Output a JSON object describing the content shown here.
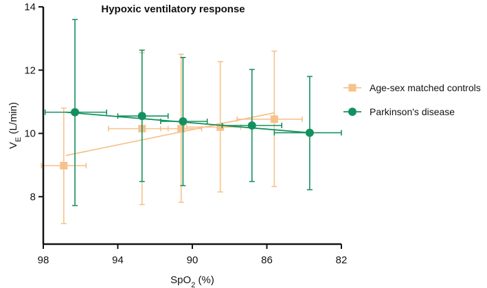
{
  "chart_data": {
    "type": "scatter",
    "title": "Hypoxic ventilatory response",
    "xlabel": {
      "main": "SpO",
      "sub": "2",
      "unit": " (%)"
    },
    "ylabel": {
      "main": "V",
      "sub": "E",
      "unit": " (L/min)"
    },
    "xlim": [
      98,
      82
    ],
    "ylim": [
      6.5,
      14
    ],
    "xticks": [
      98,
      94,
      90,
      86,
      82
    ],
    "yticks": [
      8,
      10,
      12,
      14
    ],
    "legend_position": "right",
    "series": [
      {
        "name": "Age-sex matched controls",
        "color": "#f6c28c",
        "marker": "square",
        "points": [
          {
            "x": 96.9,
            "y": 8.98,
            "x_err": [
              95.7,
              98.1
            ],
            "y_err": [
              7.15,
              10.8
            ]
          },
          {
            "x": 92.7,
            "y": 10.15,
            "x_err": [
              91.3,
              94.5
            ],
            "y_err": [
              7.75,
              12.55
            ]
          },
          {
            "x": 90.6,
            "y": 10.15,
            "x_err": [
              89.5,
              91.7
            ],
            "y_err": [
              7.82,
              12.5
            ]
          },
          {
            "x": 88.5,
            "y": 10.2,
            "x_err": [
              87.4,
              90.3
            ],
            "y_err": [
              8.15,
              12.27
            ]
          },
          {
            "x": 85.6,
            "y": 10.45,
            "x_err": [
              84.1,
              87.6
            ],
            "y_err": [
              8.32,
              12.6
            ]
          }
        ],
        "trend": {
          "x1": 96.8,
          "y1": 9.3,
          "x2": 85.6,
          "y2": 10.65
        }
      },
      {
        "name": "Parkinson's disease",
        "color": "#13905e",
        "marker": "circle",
        "points": [
          {
            "x": 96.3,
            "y": 10.67,
            "x_err": [
              97.9,
              94.6
            ],
            "y_err": [
              7.72,
              13.6
            ]
          },
          {
            "x": 92.7,
            "y": 10.55,
            "x_err": [
              94.0,
              91.3
            ],
            "y_err": [
              8.48,
              12.63
            ]
          },
          {
            "x": 90.5,
            "y": 10.38,
            "x_err": [
              91.7,
              89.2
            ],
            "y_err": [
              8.35,
              12.4
            ]
          },
          {
            "x": 86.8,
            "y": 10.25,
            "x_err": [
              88.4,
              85.2
            ],
            "y_err": [
              8.48,
              12.02
            ]
          },
          {
            "x": 83.7,
            "y": 10.02,
            "x_err": [
              85.6,
              82.0
            ],
            "y_err": [
              8.22,
              11.8
            ]
          }
        ],
        "trend": {
          "x1": 96.8,
          "y1": 10.67,
          "x2": 83.7,
          "y2": 10.02
        }
      }
    ]
  }
}
